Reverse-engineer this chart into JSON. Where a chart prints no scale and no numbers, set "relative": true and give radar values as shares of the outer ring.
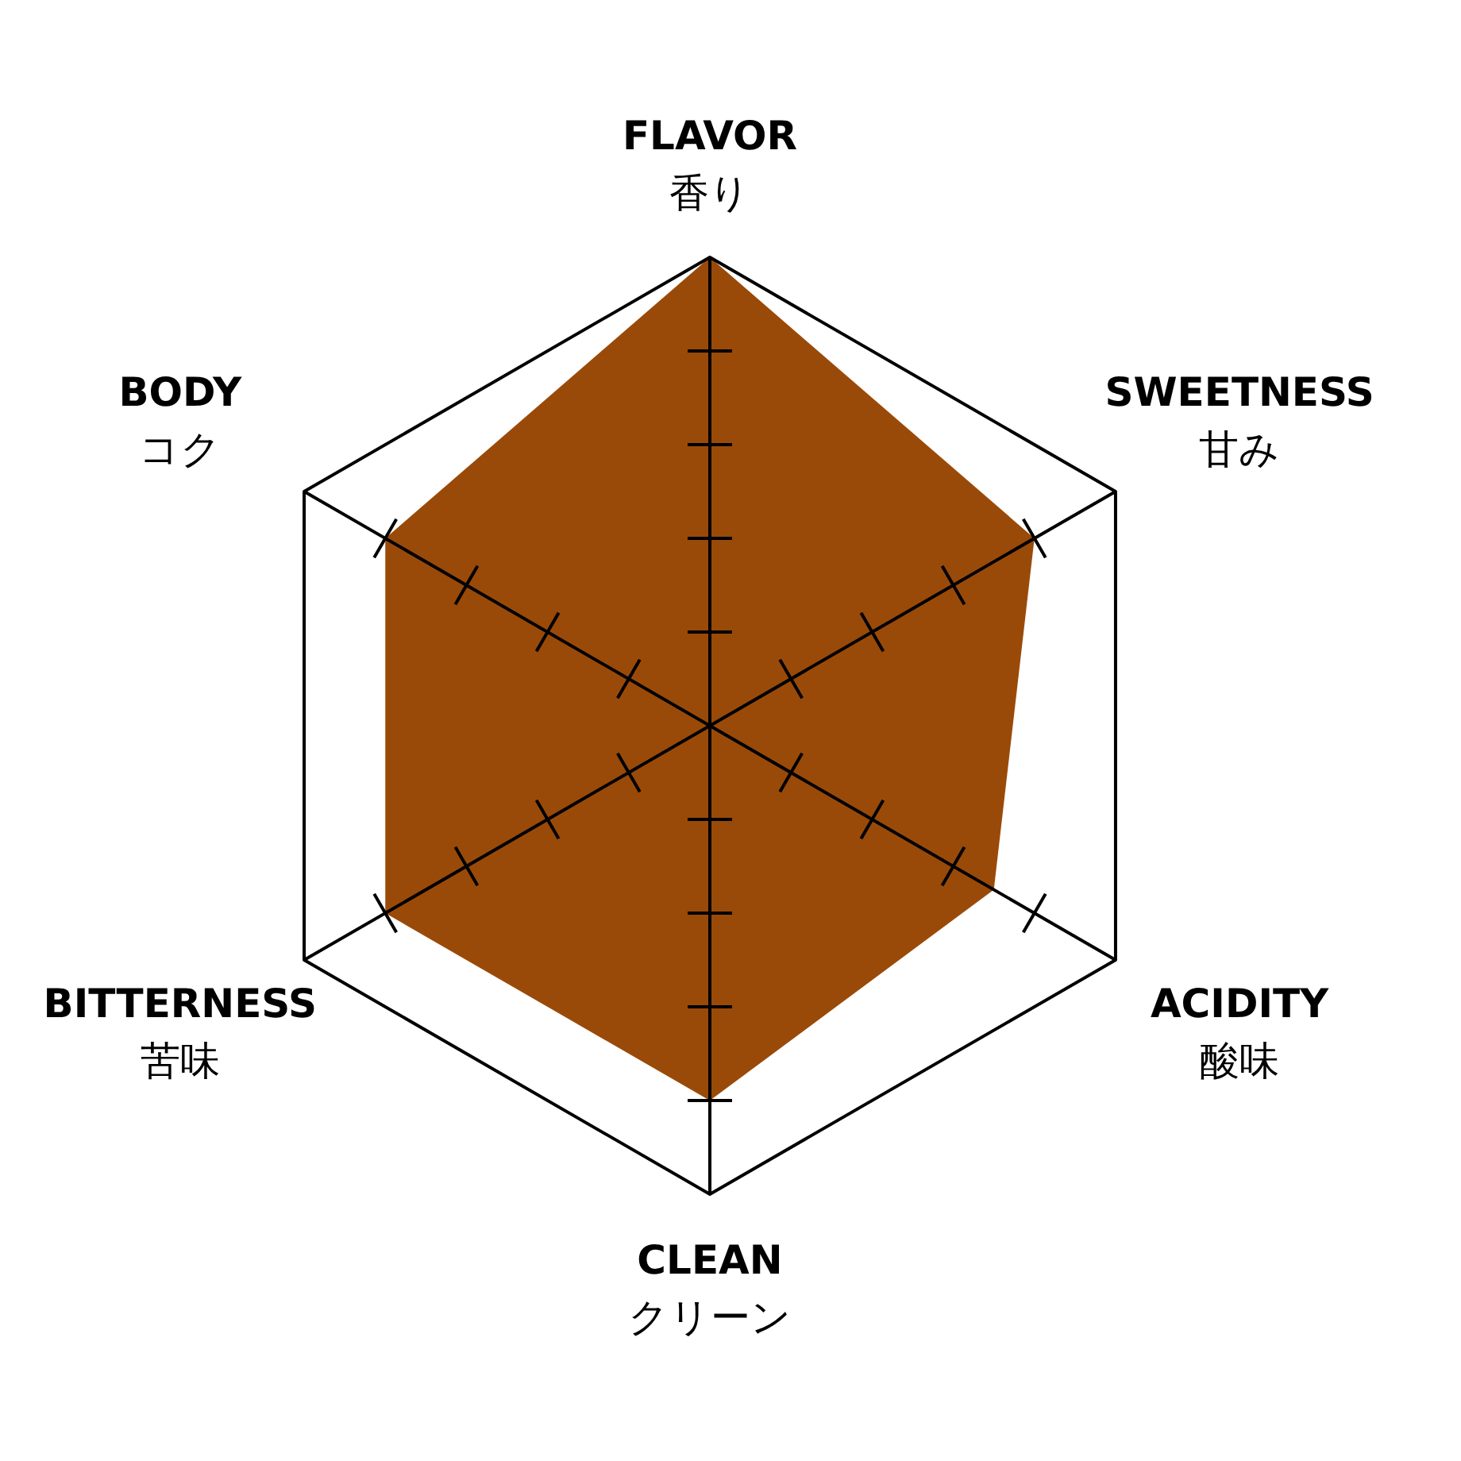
{
  "chart_data": {
    "type": "radar",
    "relative": true,
    "categories": [
      "FLAVOR\n香り",
      "SWEETNESS\n甘み",
      "ACIDITY\n酸味",
      "CLEAN\nクリーン",
      "BITTERNESS\n苦味",
      "BODY\nコク"
    ],
    "series": [
      {
        "color": "#9a4a08",
        "values": [
          1,
          0.8,
          0.7,
          0.8,
          0.8,
          0.8
        ]
      }
    ]
  }
}
